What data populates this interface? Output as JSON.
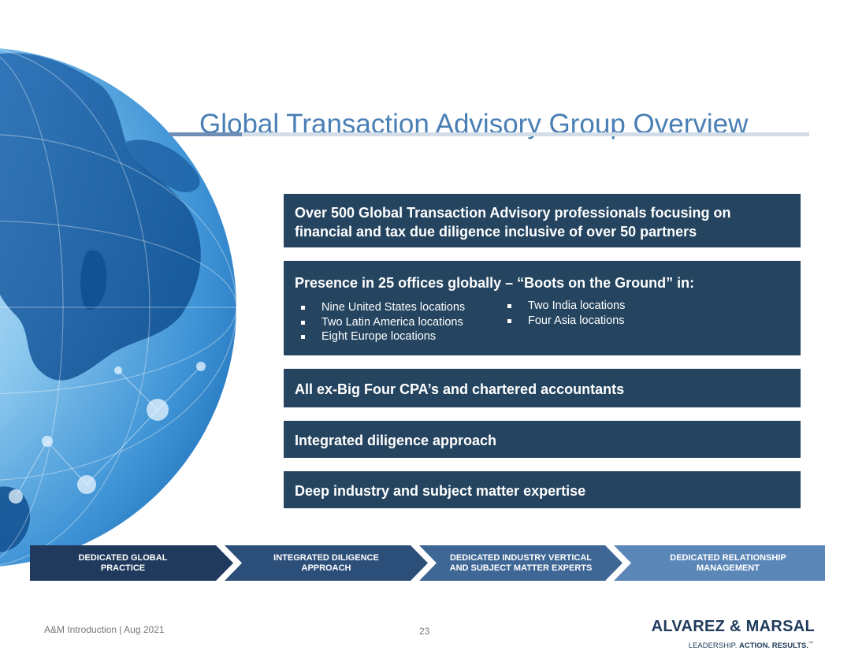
{
  "slide": {
    "title": "Global Transaction Advisory Group Overview",
    "accent_color": "#4a7fb5",
    "box_color": "#24445f"
  },
  "boxes": {
    "b1_line1": "Over 500 Global Transaction Advisory professionals focusing on",
    "b1_line2": "financial and tax due diligence inclusive of over 50 partners",
    "b2_head": "Presence in 25 offices globally – “Boots on the Ground” in:",
    "b2_left": [
      "Nine United States locations",
      "Two Latin America locations",
      "Eight Europe locations"
    ],
    "b2_right": [
      "Two India locations",
      "Four Asia locations"
    ],
    "b3": "All ex-Big Four CPA’s and chartered accountants",
    "b4": "Integrated diligence approach",
    "b5": "Deep industry and subject matter expertise"
  },
  "chevrons": [
    {
      "line1": "DEDICATED GLOBAL",
      "line2": "PRACTICE",
      "color": "#1f3a5c"
    },
    {
      "line1": "INTEGRATED DILIGENCE",
      "line2": "APPROACH",
      "color": "#2c4f7a"
    },
    {
      "line1": "DEDICATED INDUSTRY VERTICAL",
      "line2": "AND SUBJECT MATTER EXPERTS",
      "color": "#3f6795"
    },
    {
      "line1": "DEDICATED RELATIONSHIP",
      "line2": "MANAGEMENT",
      "color": "#5b87b8"
    }
  ],
  "footer": {
    "left": "A&M Introduction | Aug 2021",
    "page": "23",
    "logo_main": "ALVAREZ & MARSAL",
    "logo_sub_normal": "LEADERSHIP.",
    "logo_sub_bold": "ACTION. RESULTS.",
    "logo_tm": "™"
  }
}
